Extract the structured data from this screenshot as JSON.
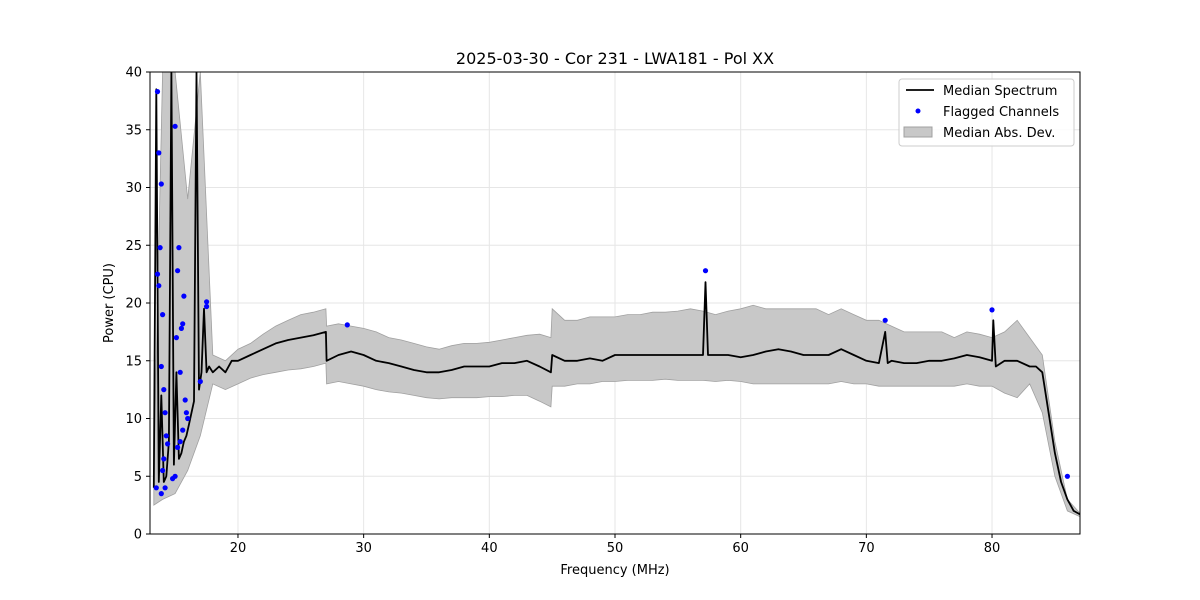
{
  "chart_data": {
    "type": "line",
    "title": "2025-03-30 - Cor 231 - LWA181 - Pol XX",
    "xlabel": "Frequency (MHz)",
    "ylabel": "Power (CPU)",
    "xlim": [
      13,
      87
    ],
    "ylim": [
      0,
      40
    ],
    "xticks": [
      20,
      30,
      40,
      50,
      60,
      70,
      80
    ],
    "yticks": [
      0,
      5,
      10,
      15,
      20,
      25,
      30,
      35,
      40
    ],
    "grid": true,
    "legend_position": "top-right",
    "colors": {
      "median": "#000000",
      "flagged": "#0000ff",
      "band": "#c8c8c8",
      "band_edge": "#a0a0a0",
      "grid": "#e6e6e6"
    },
    "legend": [
      {
        "label": "Median Spectrum",
        "kind": "line"
      },
      {
        "label": "Flagged Channels",
        "kind": "marker"
      },
      {
        "label": "Median Abs. Dev.",
        "kind": "patch"
      }
    ],
    "series": [
      {
        "name": "Median Spectrum",
        "x": [
          13.3,
          13.5,
          13.7,
          13.9,
          14.1,
          14.3,
          14.5,
          14.7,
          14.9,
          15.1,
          15.3,
          15.5,
          15.7,
          15.9,
          16.1,
          16.3,
          16.5,
          16.7,
          16.9,
          17.1,
          17.3,
          17.5,
          17.7,
          18,
          18.5,
          19,
          19.5,
          20,
          21,
          22,
          23,
          24,
          25,
          26,
          27,
          27.05,
          28,
          29,
          30,
          31,
          32,
          33,
          34,
          35,
          36,
          37,
          38,
          39,
          40,
          41,
          42,
          43,
          44,
          44.9,
          45,
          46,
          47,
          48,
          49,
          50,
          51,
          52,
          53,
          54,
          55,
          56,
          57,
          57.2,
          57.4,
          58,
          59,
          60,
          61,
          62,
          63,
          64,
          65,
          66,
          67,
          68,
          69,
          70,
          71,
          71.5,
          71.7,
          72,
          73,
          74,
          75,
          76,
          77,
          78,
          79,
          80,
          80.1,
          80.3,
          81,
          82,
          83,
          83.5,
          84,
          84.5,
          85,
          85.5,
          86,
          86.5,
          87
        ],
        "y": [
          4.0,
          38.5,
          4.5,
          12.0,
          4.5,
          5.0,
          8.0,
          40.0,
          6.0,
          14.0,
          6.5,
          7.0,
          8.0,
          8.5,
          9.5,
          10.5,
          11.5,
          40.0,
          12.5,
          14.0,
          19.5,
          14.0,
          14.5,
          14.0,
          14.5,
          14.0,
          15.0,
          15.0,
          15.5,
          16.0,
          16.5,
          16.8,
          17.0,
          17.2,
          17.5,
          15.0,
          15.5,
          15.8,
          15.5,
          15.0,
          14.8,
          14.5,
          14.2,
          14.0,
          14.0,
          14.2,
          14.5,
          14.5,
          14.5,
          14.8,
          14.8,
          15.0,
          14.5,
          14.0,
          15.5,
          15.0,
          15.0,
          15.2,
          15.0,
          15.5,
          15.5,
          15.5,
          15.5,
          15.5,
          15.5,
          15.5,
          15.5,
          21.8,
          15.5,
          15.5,
          15.5,
          15.3,
          15.5,
          15.8,
          16.0,
          15.8,
          15.5,
          15.5,
          15.5,
          16.0,
          15.5,
          15.0,
          14.8,
          17.5,
          14.8,
          15.0,
          14.8,
          14.8,
          15.0,
          15.0,
          15.2,
          15.5,
          15.3,
          15.0,
          18.5,
          14.5,
          15.0,
          15.0,
          14.5,
          14.5,
          14.0,
          10.5,
          7.0,
          4.5,
          3.0,
          2.0,
          1.7
        ]
      },
      {
        "name": "Median Abs. Dev.",
        "x": [
          13.3,
          14,
          15,
          16,
          17,
          18,
          19,
          20,
          21,
          22,
          23,
          24,
          25,
          26,
          27,
          27.05,
          28,
          29,
          30,
          31,
          32,
          33,
          34,
          35,
          36,
          37,
          38,
          39,
          40,
          41,
          42,
          43,
          44,
          44.9,
          45,
          46,
          47,
          48,
          49,
          50,
          51,
          52,
          53,
          54,
          55,
          56,
          57,
          58,
          59,
          60,
          61,
          62,
          63,
          64,
          65,
          66,
          67,
          68,
          69,
          70,
          71,
          72,
          73,
          74,
          75,
          76,
          77,
          78,
          79,
          80,
          81,
          82,
          83,
          84,
          85,
          86,
          87
        ],
        "lower": [
          2.5,
          3.0,
          3.5,
          5.5,
          8.5,
          13.0,
          12.5,
          13.0,
          13.5,
          13.8,
          14.0,
          14.2,
          14.3,
          14.5,
          14.8,
          13.0,
          13.2,
          13.0,
          12.8,
          12.5,
          12.3,
          12.2,
          12.0,
          11.8,
          11.7,
          11.8,
          11.8,
          11.8,
          11.9,
          11.9,
          12.0,
          12.0,
          11.5,
          11.0,
          12.8,
          12.8,
          13.0,
          13.0,
          13.2,
          13.2,
          13.3,
          13.3,
          13.3,
          13.4,
          13.3,
          13.3,
          13.3,
          13.2,
          13.3,
          13.2,
          13.0,
          13.0,
          13.0,
          13.0,
          13.0,
          13.0,
          13.0,
          13.2,
          13.0,
          13.0,
          12.8,
          12.8,
          12.8,
          12.8,
          12.8,
          12.8,
          12.8,
          13.0,
          12.8,
          12.8,
          12.2,
          11.8,
          13.0,
          10.5,
          5.0,
          2.0,
          1.5
        ],
        "upper": [
          5.5,
          40.0,
          40.0,
          29.0,
          40.0,
          15.5,
          15.0,
          16.0,
          16.5,
          17.3,
          18.0,
          18.5,
          19.0,
          19.2,
          19.5,
          18.0,
          18.2,
          18.0,
          17.8,
          17.5,
          17.0,
          16.8,
          16.5,
          16.2,
          16.0,
          16.3,
          16.5,
          16.5,
          16.6,
          16.8,
          17.0,
          17.2,
          17.3,
          17.0,
          19.5,
          18.5,
          18.5,
          18.8,
          18.8,
          18.8,
          19.0,
          19.0,
          19.2,
          19.2,
          19.3,
          19.5,
          19.3,
          19.0,
          19.3,
          19.5,
          19.8,
          19.5,
          19.5,
          19.5,
          19.5,
          19.5,
          19.0,
          19.5,
          19.0,
          18.5,
          18.5,
          18.0,
          17.5,
          17.5,
          17.5,
          17.5,
          17.0,
          17.5,
          17.3,
          17.0,
          17.5,
          18.5,
          17.0,
          15.5,
          8.0,
          3.0,
          1.8
        ]
      },
      {
        "name": "Flagged Channels",
        "x": [
          13.5,
          13.6,
          13.7,
          13.6,
          13.8,
          13.9,
          13.7,
          13.9,
          14.0,
          14.1,
          14.2,
          14.3,
          14.4,
          14.1,
          14.0,
          13.9,
          14.2,
          15.0,
          15.2,
          15.3,
          15.1,
          15.4,
          15.5,
          15.6,
          15.7,
          15.8,
          15.9,
          16.0,
          15.6,
          15.4,
          15.2,
          15.0,
          14.8,
          17.0,
          17.5,
          17.5,
          28.7,
          57.2,
          71.5,
          80.0,
          86.0
        ],
        "y": [
          4.0,
          38.3,
          33.0,
          22.5,
          24.8,
          30.3,
          21.5,
          14.5,
          19.0,
          12.5,
          10.5,
          8.5,
          7.8,
          6.5,
          5.5,
          3.5,
          4.0,
          35.3,
          22.8,
          24.8,
          17.0,
          14.0,
          17.8,
          18.2,
          20.6,
          11.6,
          10.5,
          10.0,
          9.0,
          8.0,
          7.5,
          5.0,
          4.8,
          13.2,
          20.1,
          19.7,
          18.1,
          22.8,
          18.5,
          19.4,
          5.0
        ]
      }
    ]
  }
}
